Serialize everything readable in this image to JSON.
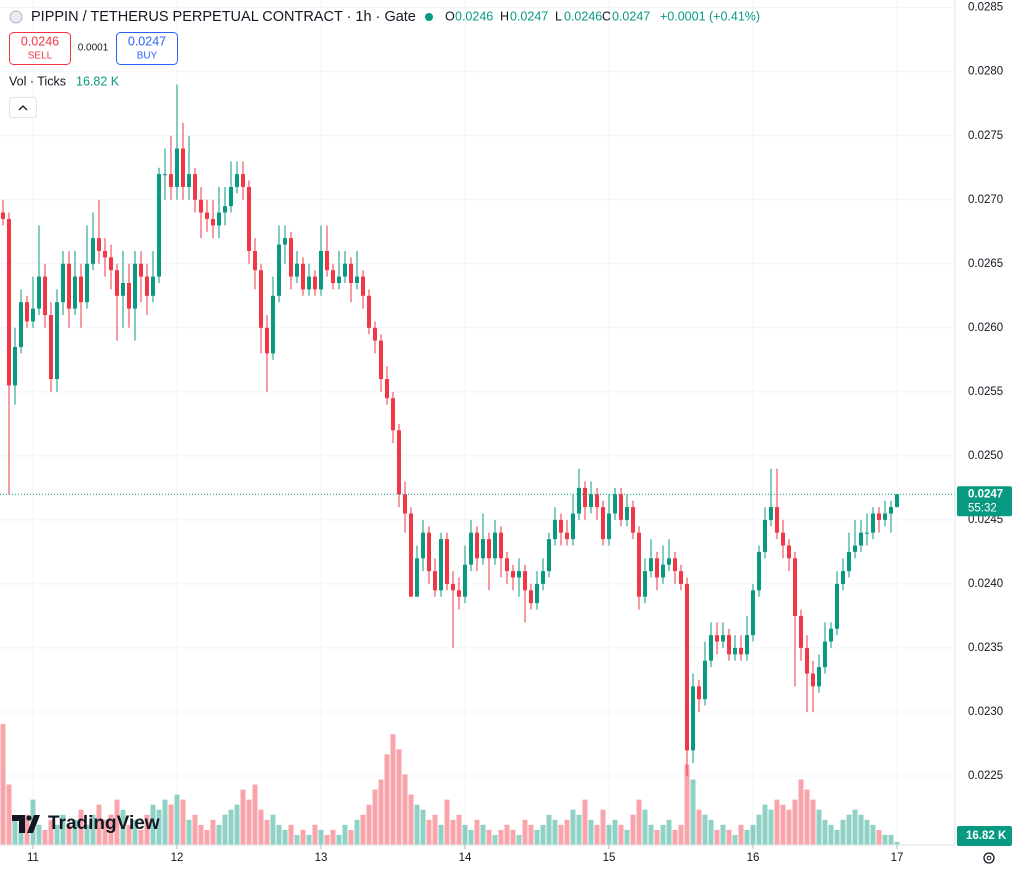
{
  "header": {
    "title": "PIPPIN / TETHERUS PERPETUAL CONTRACT · 1h · Gate",
    "o_label": "O",
    "o_value": "0.0246",
    "h_label": "H",
    "h_value": "0.0247",
    "l_label": "L",
    "l_value": "0.0246",
    "c_label": "C",
    "c_value": "0.0247",
    "change": "+0.0001 (+0.41%)",
    "sell_price": "0.0246",
    "sell": "SELL",
    "spread": "0.0001",
    "buy_price": "0.0247",
    "buy": "BUY",
    "vol_title": "Vol · Ticks",
    "vol_value": "16.82 K",
    "last_price": "0.0247",
    "countdown": "55:32",
    "logo": "TradingView"
  },
  "chart_data": {
    "type": "candlestick",
    "up_color": "#089981",
    "down_color": "#f23645",
    "volume_up_color": "rgba(8,153,129,0.45)",
    "volume_down_color": "rgba(242,54,69,0.45)",
    "grid": true,
    "ylim": [
      0.022,
      0.02856
    ],
    "yticks": [
      0.0225,
      {
        "value": 0.023,
        "label": "0.0230"
      },
      0.0235,
      {
        "value": 0.024,
        "label": "0.0240"
      },
      0.0245,
      {
        "value": 0.025,
        "label": "0.0250"
      },
      0.0255,
      {
        "value": 0.026,
        "label": "0.0260"
      },
      0.0265,
      {
        "value": 0.027,
        "label": "0.0270"
      },
      0.0275,
      {
        "value": 0.028,
        "label": "0.0280"
      },
      0.0285
    ],
    "vlim": [
      0,
      750000
    ],
    "categories": [
      null,
      null,
      null,
      null,
      null,
      "11",
      null,
      null,
      null,
      null,
      null,
      null,
      null,
      null,
      null,
      null,
      null,
      null,
      null,
      null,
      null,
      null,
      null,
      null,
      null,
      null,
      null,
      null,
      null,
      "12",
      null,
      null,
      null,
      null,
      null,
      null,
      null,
      null,
      null,
      null,
      null,
      null,
      null,
      null,
      null,
      null,
      null,
      null,
      null,
      null,
      null,
      null,
      null,
      "13",
      null,
      null,
      null,
      null,
      null,
      null,
      null,
      null,
      null,
      null,
      null,
      null,
      null,
      null,
      null,
      null,
      null,
      null,
      null,
      null,
      null,
      null,
      null,
      "14",
      null,
      null,
      null,
      null,
      null,
      null,
      null,
      null,
      null,
      null,
      null,
      null,
      null,
      null,
      null,
      null,
      null,
      null,
      null,
      null,
      null,
      null,
      null,
      "15",
      null,
      null,
      null,
      null,
      null,
      null,
      null,
      null,
      null,
      null,
      null,
      null,
      null,
      null,
      null,
      null,
      null,
      null,
      null,
      null,
      null,
      null,
      null,
      "16",
      null,
      null,
      null,
      null,
      null,
      null,
      null,
      null,
      null,
      null,
      null,
      null,
      null,
      null,
      null,
      null,
      null,
      null,
      null,
      null,
      null,
      null,
      null,
      "17"
    ],
    "open": [
      0.0269,
      0.02685,
      0.02555,
      0.02585,
      0.0262,
      0.02605,
      0.02615,
      0.0264,
      0.0261,
      0.0256,
      0.0262,
      0.0265,
      0.02615,
      0.0264,
      0.0262,
      0.0265,
      0.0267,
      0.0266,
      0.02655,
      0.02645,
      0.02625,
      0.02635,
      0.02615,
      0.0265,
      0.0264,
      0.02625,
      0.0264,
      0.0272,
      0.0272,
      0.0271,
      0.0274,
      0.0271,
      0.0272,
      0.027,
      0.0269,
      0.02685,
      0.0268,
      0.0269,
      0.02695,
      0.0271,
      0.0272,
      0.0271,
      0.0266,
      0.02645,
      0.026,
      0.0258,
      0.02625,
      0.02665,
      0.0267,
      0.0264,
      0.0265,
      0.0263,
      0.0264,
      0.0263,
      0.0266,
      0.02645,
      0.02635,
      0.0264,
      0.0265,
      0.02635,
      0.0264,
      0.02625,
      0.026,
      0.0259,
      0.0256,
      0.02545,
      0.0252,
      0.0247,
      0.02455,
      0.0239,
      0.0242,
      0.0244,
      0.0241,
      0.02395,
      0.02435,
      0.024,
      0.02395,
      0.0239,
      0.02415,
      0.0244,
      0.0242,
      0.02435,
      0.0242,
      0.0244,
      0.0242,
      0.0241,
      0.02405,
      0.0241,
      0.02395,
      0.02385,
      0.024,
      0.0241,
      0.02435,
      0.0245,
      0.0244,
      0.02435,
      0.02455,
      0.02475,
      0.0246,
      0.0247,
      0.0246,
      0.02435,
      0.02455,
      0.0247,
      0.0245,
      0.0246,
      0.0244,
      0.0239,
      0.0241,
      0.0242,
      0.02405,
      0.02415,
      0.0242,
      0.0241,
      0.024,
      0.0227,
      0.0232,
      0.0231,
      0.0234,
      0.0236,
      0.02355,
      0.0236,
      0.02345,
      0.0235,
      0.02345,
      0.0236,
      0.02395,
      0.02425,
      0.0245,
      0.0246,
      0.0244,
      0.0243,
      0.0242,
      0.02375,
      0.0235,
      0.0233,
      0.0232,
      0.02335,
      0.02355,
      0.02365,
      0.024,
      0.0241,
      0.02425,
      0.0243,
      0.0244,
      0.0244,
      0.02455,
      0.0245,
      0.02455,
      0.0246
    ],
    "high": [
      0.027,
      0.0269,
      0.026,
      0.0263,
      0.02625,
      0.0264,
      0.0268,
      0.0265,
      0.0262,
      0.0263,
      0.0266,
      0.0266,
      0.0266,
      0.0265,
      0.0268,
      0.0269,
      0.027,
      0.0267,
      0.02665,
      0.0265,
      0.0266,
      0.0265,
      0.0266,
      0.0266,
      0.0265,
      0.0266,
      0.02725,
      0.0274,
      0.0275,
      0.0279,
      0.0276,
      0.0275,
      0.02725,
      0.0271,
      0.027,
      0.027,
      0.0271,
      0.0271,
      0.0273,
      0.0273,
      0.0273,
      0.02715,
      0.0267,
      0.0265,
      0.0261,
      0.0264,
      0.0268,
      0.0268,
      0.02675,
      0.0266,
      0.02655,
      0.0265,
      0.02645,
      0.0268,
      0.0268,
      0.0265,
      0.0266,
      0.0266,
      0.02655,
      0.0266,
      0.02645,
      0.0263,
      0.02605,
      0.02595,
      0.0257,
      0.0255,
      0.02525,
      0.0248,
      0.0246,
      0.0243,
      0.0245,
      0.02445,
      0.0242,
      0.0244,
      0.0244,
      0.0241,
      0.02405,
      0.0243,
      0.0245,
      0.02445,
      0.02455,
      0.0244,
      0.0245,
      0.02445,
      0.02425,
      0.02415,
      0.0242,
      0.02415,
      0.024,
      0.0241,
      0.0242,
      0.0244,
      0.0246,
      0.02455,
      0.0245,
      0.0247,
      0.0249,
      0.0248,
      0.0248,
      0.02475,
      0.02465,
      0.0247,
      0.02475,
      0.02475,
      0.0247,
      0.02465,
      0.02445,
      0.0242,
      0.02435,
      0.02425,
      0.0243,
      0.02435,
      0.02425,
      0.02415,
      0.02405,
      0.0233,
      0.02325,
      0.02355,
      0.0237,
      0.0237,
      0.0237,
      0.02365,
      0.0236,
      0.0236,
      0.02375,
      0.024,
      0.0243,
      0.0246,
      0.0249,
      0.0249,
      0.0245,
      0.02435,
      0.02425,
      0.0238,
      0.0236,
      0.0234,
      0.02345,
      0.0237,
      0.0237,
      0.0241,
      0.0242,
      0.0244,
      0.0245,
      0.0245,
      0.02455,
      0.0246,
      0.0246,
      0.02465,
      0.02465,
      0.0247
    ],
    "low": [
      0.0268,
      0.0247,
      0.0254,
      0.0258,
      0.026,
      0.026,
      0.0261,
      0.026,
      0.0255,
      0.0255,
      0.0261,
      0.026,
      0.0261,
      0.026,
      0.02615,
      0.02645,
      0.0265,
      0.0264,
      0.0263,
      0.0259,
      0.026,
      0.026,
      0.0259,
      0.0262,
      0.0261,
      0.0262,
      0.02635,
      0.027,
      0.027,
      0.027,
      0.027,
      0.027,
      0.0269,
      0.0267,
      0.02675,
      0.0267,
      0.0267,
      0.0268,
      0.0269,
      0.02705,
      0.027,
      0.0265,
      0.0263,
      0.0258,
      0.0255,
      0.02575,
      0.0262,
      0.0265,
      0.0263,
      0.02635,
      0.02625,
      0.02625,
      0.02625,
      0.02625,
      0.0264,
      0.0263,
      0.0263,
      0.02635,
      0.0262,
      0.0263,
      0.02615,
      0.02595,
      0.0258,
      0.0255,
      0.0254,
      0.0251,
      0.0246,
      0.0244,
      0.0239,
      0.0239,
      0.0241,
      0.024,
      0.0239,
      0.0239,
      0.02395,
      0.0235,
      0.0238,
      0.02385,
      0.0241,
      0.0241,
      0.02415,
      0.02395,
      0.02415,
      0.02405,
      0.024,
      0.02395,
      0.0239,
      0.0237,
      0.0238,
      0.0238,
      0.02395,
      0.02405,
      0.0243,
      0.0243,
      0.0243,
      0.0243,
      0.0245,
      0.0245,
      0.02455,
      0.0245,
      0.0243,
      0.0243,
      0.0245,
      0.02445,
      0.02445,
      0.02435,
      0.0238,
      0.02385,
      0.02405,
      0.02395,
      0.024,
      0.0241,
      0.024,
      0.02395,
      0.0225,
      0.0226,
      0.023,
      0.02305,
      0.02335,
      0.02345,
      0.0235,
      0.0234,
      0.0234,
      0.0234,
      0.0234,
      0.02355,
      0.0239,
      0.0242,
      0.02445,
      0.02435,
      0.0242,
      0.0241,
      0.0232,
      0.0234,
      0.023,
      0.023,
      0.02315,
      0.0233,
      0.0235,
      0.0236,
      0.02395,
      0.02405,
      0.0242,
      0.02425,
      0.0243,
      0.02435,
      0.0244,
      0.02445,
      0.0244,
      0.0246
    ],
    "close": [
      0.02685,
      0.02555,
      0.02585,
      0.0262,
      0.02605,
      0.02615,
      0.0264,
      0.0261,
      0.0256,
      0.0262,
      0.0265,
      0.02615,
      0.0264,
      0.0262,
      0.0265,
      0.0267,
      0.0266,
      0.02655,
      0.02645,
      0.02625,
      0.02635,
      0.02615,
      0.0265,
      0.0264,
      0.02625,
      0.0264,
      0.0272,
      0.0272,
      0.0271,
      0.0274,
      0.0271,
      0.0272,
      0.027,
      0.0269,
      0.02685,
      0.0268,
      0.0269,
      0.02695,
      0.0271,
      0.0272,
      0.0271,
      0.0266,
      0.02645,
      0.026,
      0.0258,
      0.02625,
      0.02665,
      0.0267,
      0.0264,
      0.0265,
      0.0263,
      0.0264,
      0.0263,
      0.0266,
      0.02645,
      0.02635,
      0.0264,
      0.0265,
      0.02635,
      0.0264,
      0.02625,
      0.026,
      0.0259,
      0.0256,
      0.02545,
      0.0252,
      0.0247,
      0.02455,
      0.0239,
      0.0242,
      0.0244,
      0.0241,
      0.02395,
      0.02435,
      0.024,
      0.02395,
      0.0239,
      0.02415,
      0.0244,
      0.0242,
      0.02435,
      0.0242,
      0.0244,
      0.0242,
      0.0241,
      0.02405,
      0.0241,
      0.02395,
      0.02385,
      0.024,
      0.0241,
      0.02435,
      0.0245,
      0.0244,
      0.02435,
      0.02455,
      0.02475,
      0.0246,
      0.0247,
      0.0246,
      0.02435,
      0.02455,
      0.0247,
      0.0245,
      0.0246,
      0.0244,
      0.0239,
      0.0241,
      0.0242,
      0.02405,
      0.02415,
      0.0242,
      0.0241,
      0.024,
      0.0227,
      0.0232,
      0.0231,
      0.0234,
      0.0236,
      0.02355,
      0.0236,
      0.02345,
      0.0235,
      0.02345,
      0.0236,
      0.02395,
      0.02425,
      0.0245,
      0.0246,
      0.0244,
      0.0243,
      0.0242,
      0.02375,
      0.0235,
      0.0233,
      0.0232,
      0.02335,
      0.02355,
      0.02365,
      0.024,
      0.0241,
      0.02425,
      0.0243,
      0.0244,
      0.0244,
      0.02455,
      0.0245,
      0.02455,
      0.0246,
      0.0247
    ],
    "volume": [
      672000,
      336000,
      140000,
      112000,
      168000,
      252000,
      112000,
      84000,
      140000,
      112000,
      168000,
      112000,
      140000,
      196000,
      112000,
      168000,
      224000,
      140000,
      168000,
      252000,
      196000,
      112000,
      140000,
      84000,
      168000,
      224000,
      196000,
      252000,
      224000,
      280000,
      252000,
      140000,
      168000,
      112000,
      84000,
      140000,
      112000,
      168000,
      196000,
      224000,
      308000,
      252000,
      336000,
      196000,
      140000,
      168000,
      112000,
      84000,
      112000,
      56000,
      84000,
      56000,
      112000,
      84000,
      56000,
      84000,
      56000,
      112000,
      84000,
      140000,
      168000,
      224000,
      308000,
      364000,
      504000,
      616000,
      532000,
      392000,
      280000,
      224000,
      196000,
      140000,
      168000,
      112000,
      252000,
      140000,
      168000,
      112000,
      84000,
      140000,
      112000,
      84000,
      56000,
      84000,
      112000,
      84000,
      56000,
      140000,
      112000,
      84000,
      112000,
      168000,
      140000,
      112000,
      140000,
      196000,
      168000,
      252000,
      140000,
      112000,
      196000,
      112000,
      140000,
      112000,
      84000,
      168000,
      252000,
      196000,
      112000,
      84000,
      112000,
      140000,
      84000,
      112000,
      448000,
      364000,
      196000,
      168000,
      140000,
      84000,
      112000,
      84000,
      56000,
      112000,
      84000,
      112000,
      168000,
      224000,
      196000,
      252000,
      224000,
      196000,
      252000,
      364000,
      308000,
      252000,
      196000,
      140000,
      112000,
      84000,
      140000,
      168000,
      196000,
      168000,
      140000,
      112000,
      84000,
      56000,
      56000,
      16820
    ]
  }
}
